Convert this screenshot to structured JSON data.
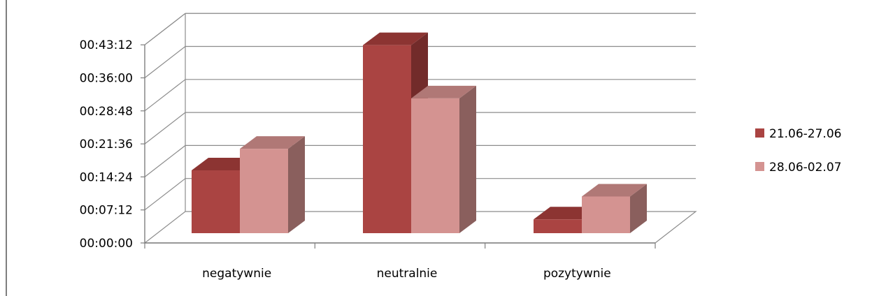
{
  "chart_data": {
    "type": "bar",
    "style": "3d-clustered-column",
    "categories": [
      "negatywnie",
      "neutralnie",
      "pozytywnie"
    ],
    "series": [
      {
        "name": "21.06-27.06",
        "values_seconds": [
          822,
          2460,
          180
        ],
        "color": "#AA4442",
        "side_color": "#722B2A",
        "top_color": "#8C3432"
      },
      {
        "name": "28.06-02.07",
        "values_seconds": [
          1104,
          1764,
          480
        ],
        "color": "#D49391",
        "side_color": "#8A5F5D",
        "top_color": "#B07876"
      }
    ],
    "y_ticks": [
      "00:00:00",
      "00:07:12",
      "00:14:24",
      "00:21:36",
      "00:28:48",
      "00:36:00",
      "00:43:12"
    ],
    "ylim_seconds": [
      0,
      2592
    ],
    "y_tick_step_seconds": 432,
    "grid": true,
    "legend_position": "right"
  }
}
